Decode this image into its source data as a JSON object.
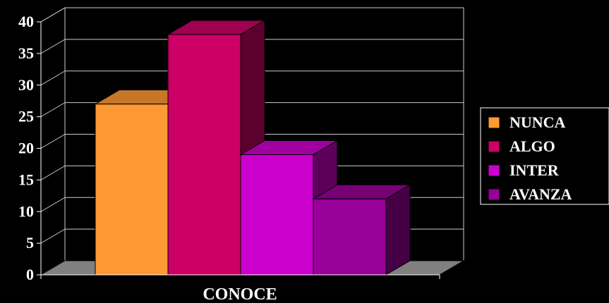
{
  "chart_data": {
    "type": "bar",
    "style": "3d-clustered",
    "categories": [
      "CONOCE"
    ],
    "xlabel": "CONOCE",
    "ylabel": "",
    "ylim": [
      0,
      40
    ],
    "yticks": [
      "0",
      "5",
      "10",
      "15",
      "20",
      "25",
      "30",
      "35",
      "40"
    ],
    "grid": true,
    "legend_position": "right",
    "series": [
      {
        "name": "NUNCA",
        "values": [
          27
        ],
        "color": "#FF9933"
      },
      {
        "name": "ALGO",
        "values": [
          38
        ],
        "color": "#CC0066"
      },
      {
        "name": "INTER",
        "values": [
          19
        ],
        "color": "#CC00CC"
      },
      {
        "name": "AVANZA",
        "values": [
          12
        ],
        "color": "#990099"
      }
    ]
  }
}
